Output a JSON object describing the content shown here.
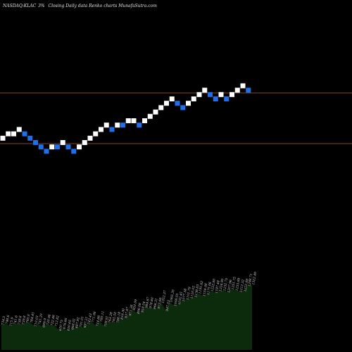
{
  "header": {
    "ticker": "NASDAQ:KLAC",
    "brick_size": "3%",
    "description": "Closing Daily data Renko charts MunafaSutra.com"
  },
  "colors": {
    "up_brick": "#ffffff",
    "down_brick": "#1e6fe8",
    "level_line": "#b0601f",
    "volume_fill": "#0c2a0c",
    "background": "#000000"
  },
  "chart_data": {
    "type": "renko",
    "brick_size_percent": 3,
    "levels": [
      1,
      2,
      2,
      3,
      2,
      1,
      0,
      -1,
      -2,
      -1,
      -1,
      0,
      -1,
      -2,
      -1,
      0,
      1,
      2,
      3,
      4,
      3,
      4,
      4,
      5,
      5,
      4,
      5,
      6,
      7,
      8,
      9,
      10,
      9,
      8,
      9,
      10,
      11,
      12,
      11,
      10,
      11,
      10,
      11,
      12,
      13,
      12
    ],
    "direction": [
      "up",
      "up",
      "up",
      "up",
      "down",
      "down",
      "down",
      "down",
      "down",
      "up",
      "down",
      "up",
      "down",
      "down",
      "up",
      "up",
      "up",
      "up",
      "up",
      "up",
      "down",
      "up",
      "down",
      "up",
      "up",
      "down",
      "up",
      "up",
      "up",
      "up",
      "up",
      "up",
      "down",
      "down",
      "up",
      "up",
      "up",
      "up",
      "down",
      "down",
      "up",
      "down",
      "up",
      "up",
      "up",
      "down"
    ],
    "horizontal_lines": [
      "upper",
      "lower"
    ],
    "volume_labels": [
      "734.5",
      "748.6",
      "715.9",
      "741.6",
      "738.6",
      "739.8",
      "760.0",
      "764.41",
      "710.03",
      "741.20",
      "699.9",
      "730.06",
      "722.46",
      "712.82",
      "650.75",
      "676.66",
      "650.65",
      "668.02",
      "687.92",
      "701.01",
      "697.21",
      "743.43",
      "771.06",
      "714.86",
      "780.11",
      "708.91",
      "763.28",
      "765.50",
      "766.18",
      "816.30",
      "837.87",
      "871.26",
      "950.09",
      "896.08",
      "918.54",
      "984.67",
      "978.60",
      "966.31",
      "973.66",
      "1052.37",
      "937.53",
      "1065.35",
      "1008.05",
      "1032.45",
      "1077.38",
      "1101.79",
      "1120.02",
      "1138.83",
      "1191.62",
      "1154.08",
      "1175.06",
      "1222.80",
      "1197.48",
      "1224.90",
      "1232.75",
      "1207.96",
      "1251.75",
      "1233.89",
      "1212.32",
      "1222.66",
      "1298.71",
      "1322.49"
    ]
  }
}
